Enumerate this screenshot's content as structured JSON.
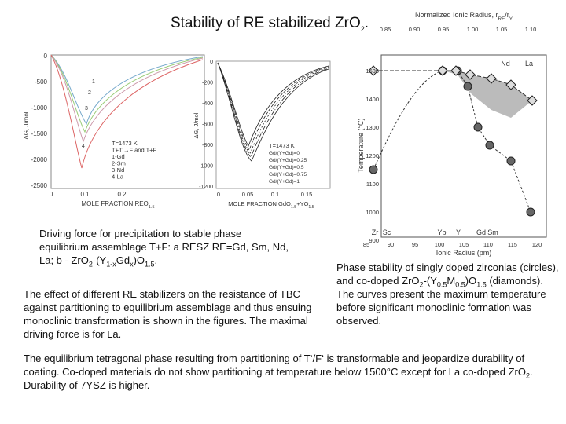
{
  "title": [
    "Stability of RE stabilized ZrO",
    {
      "sub": "2"
    },
    "."
  ],
  "figures": [
    {
      "y_label": "ΔG, J/mol",
      "y_ticks": [
        "0",
        "-500",
        "-1000",
        "-1500",
        "-2000",
        "-2500"
      ],
      "x_ticks": [
        "0",
        "0.1",
        "0.2"
      ],
      "x_label": [
        "MOLE FRACTION REO",
        {
          "sub": "1.5"
        }
      ],
      "legend": [
        "T=1473 K",
        "T+T'→F and T+F",
        "1-Gd",
        "2-Sm",
        "3-Nd",
        "4-La"
      ],
      "curve_labels": [
        "1",
        "2",
        "3",
        "4"
      ]
    },
    {
      "y_label": "ΔG, J/mol",
      "y_ticks": [
        "0",
        "-200",
        "-400",
        "-600",
        "-800",
        "-1000",
        "-1200"
      ],
      "x_ticks": [
        "0",
        "0.05",
        "0.1",
        "0.15"
      ],
      "x_label": [
        "MOLE FRACTION GdO",
        {
          "sub": "1.5"
        },
        "+YO",
        {
          "sub": "1.5"
        }
      ],
      "legend": [
        "T=1473 K",
        "Gd/(Y+Gd)=0",
        "Gd/(Y+Gd)=0.25",
        "Gd/(Y+Gd)=0.5",
        "Gd/(Y+Gd)=0.75",
        "Gd/(Y+Gd)=1"
      ]
    },
    {
      "top_label": [
        "Normalized Ionic Radius, r",
        {
          "sub": "RE"
        },
        "/r",
        {
          "sub": "Y"
        }
      ],
      "top_ticks": [
        "0.85",
        "0.90",
        "0.95",
        "1.00",
        "1.05",
        "1.10"
      ],
      "y_label": "Temperature (°C)",
      "y_ticks": [
        "1500",
        "1400",
        "1300",
        "1200",
        "1100",
        "1000",
        "900"
      ],
      "x_ticks": [
        "85",
        "90",
        "95",
        "100",
        "105",
        "110",
        "115",
        "120"
      ],
      "x_label": "Ionic Radius (pm)",
      "elements_bottom": [
        "Zr",
        "Sc",
        "Yb",
        "Y",
        "Gd",
        "Sm"
      ],
      "elements_top": [
        "Nd",
        "La"
      ]
    }
  ],
  "captions": [
    [
      "Driving force for precipitation to stable phase equilibrium assemblage T+F: a RESZ RE=Gd, Sm, Nd, La; b - ZrO",
      {
        "sub": "2"
      },
      "-(Y",
      {
        "sub": "1-x"
      },
      "Gd",
      {
        "sub": "x"
      },
      ")O",
      {
        "sub": "1.5"
      },
      "."
    ],
    [
      "The effect of different RE stabilizers on the resistance of TBC against partitioning to equilibrium assemblage and thus ensuing monoclinic transformation is shown in the figures. The maximal driving force is for La."
    ],
    [
      "Phase stability of singly doped zirconias (circles), and co-doped ZrO",
      {
        "sub": "2"
      },
      "-(Y",
      {
        "sub": "0.5"
      },
      "M",
      {
        "sub": "0.5"
      },
      ")O",
      {
        "sub": "1.5"
      },
      " (diamonds). The curves present the maximum temperature before significant monoclinic formation was observed."
    ],
    [
      "The equilibrium tetragonal phase resulting from partitioning of T‘/F‘ is transformable and jeopardize durability of coating. Co-doped materials do not show partitioning at temperature below 1500°C except for La co-doped ZrO",
      {
        "sub": "2"
      },
      ". Durability of 7YSZ is higher."
    ]
  ]
}
